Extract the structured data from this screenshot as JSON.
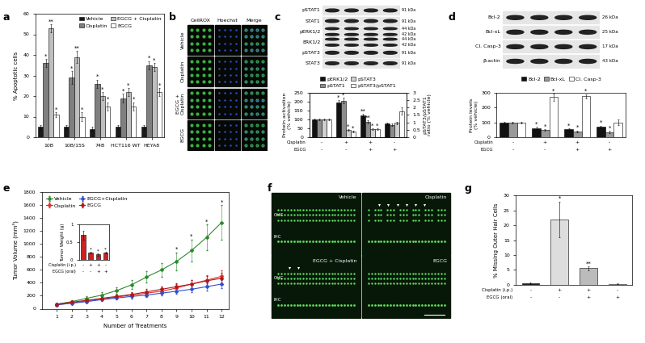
{
  "panel_labels": [
    "a",
    "b",
    "c",
    "d",
    "e",
    "f",
    "g"
  ],
  "chart_data": [
    {
      "type": "bar",
      "ylabel": "% Apoptotic cells",
      "categories": [
        "10B",
        "10B/15S",
        "74B",
        "HCT116 WT",
        "HEYA8"
      ],
      "ylim": [
        0,
        60
      ],
      "yticks": [
        0,
        10,
        20,
        30,
        40,
        50,
        60
      ],
      "legend": "upper right",
      "series": [
        {
          "name": "Vehicle",
          "color": "#1a1a1a",
          "values": [
            5,
            5,
            4,
            5,
            5
          ],
          "errors": [
            1,
            1,
            1,
            1,
            1
          ],
          "marks": [
            null,
            null,
            null,
            null,
            null
          ]
        },
        {
          "name": "Cisplatin",
          "color": "#7f7f7f",
          "values": [
            36,
            29,
            26,
            19,
            35
          ],
          "errors": [
            2,
            3,
            2,
            2,
            2
          ],
          "marks": [
            "*",
            "*",
            "*",
            "*",
            "*"
          ]
        },
        {
          "name": "EGCG + Cisplatin",
          "color": "#bfbfbf",
          "values": [
            53,
            39,
            20,
            22,
            34
          ],
          "errors": [
            2,
            3,
            2,
            2,
            2
          ],
          "marks": [
            "**",
            "**",
            "*",
            "*",
            "*"
          ]
        },
        {
          "name": "EGCG",
          "color": "#ffffff",
          "values": [
            11,
            10,
            15,
            15,
            22
          ],
          "errors": [
            1,
            2,
            2,
            2,
            2
          ],
          "marks": [
            "*",
            "*",
            "*",
            "*",
            "*"
          ]
        }
      ]
    },
    {
      "type": "bar",
      "ylabel": "Protein activation\n(% vehicle)",
      "y2label": "pSTAT3/pSTAT1\nratio (% vehicle)",
      "categories": [
        null,
        null,
        null,
        null
      ],
      "ylim": [
        0,
        250
      ],
      "yticks": [
        0,
        50,
        100,
        150,
        200,
        250
      ],
      "y2lim": [
        0,
        3
      ],
      "y2ticks": [
        0,
        0.5,
        1,
        1.5,
        2,
        2.5,
        3
      ],
      "legend": "upper center",
      "series": [
        {
          "name": "pERK1/2",
          "color": "#111111",
          "values": [
            100,
            195,
            120,
            75
          ],
          "errors": [
            5,
            12,
            10,
            8
          ],
          "marks": [
            null,
            "*",
            "**",
            null
          ]
        },
        {
          "name": "pSTAT1",
          "color": "#8c8c8c",
          "values": [
            100,
            205,
            85,
            70
          ],
          "errors": [
            5,
            15,
            8,
            8
          ],
          "marks": [
            null,
            "*",
            "**",
            null
          ]
        },
        {
          "name": "pSTAT3",
          "color": "#d0d0d0",
          "values": [
            100,
            40,
            45,
            80
          ],
          "errors": [
            5,
            6,
            6,
            8
          ],
          "marks": [
            null,
            "*",
            "*",
            null
          ]
        },
        {
          "name": "pSTAT3/pSTAT1",
          "color": "#ffffff",
          "axis": "y2",
          "values": [
            1.2,
            0.4,
            0.55,
            1.75
          ],
          "errors": [
            0.05,
            0.05,
            0.05,
            0.25
          ],
          "marks": [
            null,
            "*",
            "*",
            null
          ]
        }
      ],
      "treatments": [
        {
          "name": "Cisplatin",
          "signs": [
            "-",
            "+",
            "+",
            "-"
          ]
        },
        {
          "name": "EGCG",
          "signs": [
            "-",
            "-",
            "+",
            "+"
          ]
        }
      ]
    },
    {
      "type": "bar",
      "ylabel": "Protein levels\n(% vehicle)",
      "categories": [
        null,
        null,
        null,
        null
      ],
      "ylim": [
        0,
        300
      ],
      "yticks": [
        0,
        100,
        200,
        300
      ],
      "legend": "upper center",
      "series": [
        {
          "name": "Bcl-2",
          "color": "#111111",
          "values": [
            100,
            60,
            55,
            70
          ],
          "errors": [
            5,
            8,
            6,
            8
          ],
          "marks": [
            null,
            "*",
            "*",
            "*"
          ]
        },
        {
          "name": "Bcl-xL",
          "color": "#999999",
          "values": [
            100,
            50,
            40,
            35
          ],
          "errors": [
            5,
            6,
            6,
            6
          ],
          "marks": [
            null,
            "*",
            "*",
            "*"
          ]
        },
        {
          "name": "Cl. Casp-3",
          "color": "#ffffff",
          "values": [
            100,
            270,
            275,
            100
          ],
          "errors": [
            5,
            25,
            15,
            20
          ],
          "marks": [
            null,
            "*",
            "*",
            null
          ]
        }
      ],
      "treatments": [
        {
          "name": "Cisplatin",
          "signs": [
            "-",
            "+",
            "+",
            "-"
          ]
        },
        {
          "name": "EGCG",
          "signs": [
            "-",
            "-",
            "+",
            "+"
          ]
        }
      ]
    },
    {
      "type": "line",
      "xlabel": "Number of Treatments",
      "ylabel": "Tumor Volume (mm³)",
      "x": [
        1,
        2,
        3,
        4,
        5,
        6,
        7,
        8,
        9,
        10,
        11,
        12
      ],
      "xlim": [
        0,
        12.5
      ],
      "xticks": [
        1,
        2,
        3,
        4,
        5,
        6,
        7,
        8,
        9,
        10,
        11,
        12
      ],
      "ylim": [
        0,
        1800
      ],
      "yticks": [
        0,
        200,
        400,
        600,
        800,
        1000,
        1200,
        1400,
        1600,
        1800
      ],
      "legend": "upper left",
      "marker": "diamond",
      "series": [
        {
          "name": "Vehicle",
          "color": "#2e8b2e",
          "values": [
            70,
            110,
            160,
            210,
            280,
            370,
            490,
            600,
            730,
            900,
            1100,
            1330
          ],
          "errors": [
            15,
            20,
            30,
            40,
            50,
            70,
            90,
            110,
            140,
            170,
            200,
            270
          ],
          "marks": [
            null,
            null,
            null,
            null,
            null,
            null,
            null,
            null,
            "*",
            "*",
            "*",
            "*"
          ]
        },
        {
          "name": "Cisplatin",
          "color": "#e03030",
          "values": [
            60,
            90,
            120,
            150,
            180,
            210,
            240,
            270,
            320,
            380,
            440,
            500
          ],
          "errors": [
            10,
            15,
            20,
            25,
            30,
            35,
            40,
            45,
            55,
            65,
            75,
            90
          ]
        },
        {
          "name": "EGCG+Cisplatin",
          "color": "#3050d0",
          "values": [
            60,
            85,
            110,
            140,
            165,
            190,
            210,
            240,
            270,
            300,
            340,
            380
          ],
          "errors": [
            10,
            12,
            15,
            20,
            25,
            30,
            35,
            40,
            45,
            50,
            55,
            60
          ]
        },
        {
          "name": "EGCG",
          "color": "#b01818",
          "values": [
            70,
            100,
            130,
            160,
            190,
            220,
            260,
            300,
            340,
            380,
            430,
            470
          ],
          "errors": [
            10,
            15,
            20,
            25,
            30,
            35,
            40,
            45,
            55,
            65,
            75,
            85
          ]
        }
      ],
      "inset": {
        "type": "bar",
        "ylabel": "Tumor Weight (g)",
        "categories": [
          null,
          null,
          null,
          null
        ],
        "values": [
          0.7,
          0.2,
          0.15,
          0.2
        ],
        "errors": [
          0.12,
          0.03,
          0.03,
          0.03
        ],
        "marks": [
          null,
          "*",
          "*",
          "*"
        ],
        "color": "#cc2222",
        "ylim": [
          0,
          1
        ],
        "yticks": [
          0,
          0.5,
          1
        ],
        "treatments": [
          {
            "name": "Cisplatin (i.p.)",
            "signs": [
              "-",
              "+",
              "+",
              "-"
            ]
          },
          {
            "name": "EGCG (oral)",
            "signs": [
              "-",
              "-",
              "+",
              "+"
            ]
          }
        ]
      }
    },
    {
      "type": "bar",
      "ylabel": "% Missing Outer Hair Cells",
      "categories": [
        null,
        null,
        null,
        null
      ],
      "values": [
        0.5,
        22,
        5.5,
        0.3
      ],
      "errors": [
        0.3,
        6,
        0.7,
        0.2
      ],
      "marks": [
        null,
        "*",
        "**",
        null
      ],
      "colors": [
        "#222222",
        "#dddddd",
        "#bbbbbb",
        "#ffffff"
      ],
      "ylim": [
        0,
        30
      ],
      "yticks": [
        0,
        5,
        10,
        15,
        20,
        25,
        30
      ],
      "treatments": [
        {
          "name": "Cisplatin (i.p.)",
          "signs": [
            "-",
            "+",
            "+",
            "-"
          ]
        },
        {
          "name": "EGCG (oral)",
          "signs": [
            "-",
            "-",
            "+",
            "+"
          ]
        }
      ]
    }
  ],
  "cellrox_images": {
    "columns": [
      "CellROX",
      "Hoechst",
      "Merge"
    ],
    "rows": [
      "Vehicle",
      "Cisplatin",
      "EGCG +\nCisplatin",
      "EGCG"
    ]
  },
  "blots_c": [
    {
      "label": "pSTAT1",
      "kda": [
        "91 kDa"
      ]
    },
    {
      "label": "STAT1",
      "kda": [
        "91 kDa"
      ]
    },
    {
      "label": "pERK1/2",
      "kda": [
        "44 kDa",
        "42 kDa"
      ]
    },
    {
      "label": "ERK1/2",
      "kda": [
        "44 kDa",
        "42 kDa"
      ]
    },
    {
      "label": "pSTAT3",
      "kda": [
        "91 kDa"
      ]
    },
    {
      "label": "STAT3",
      "kda": [
        "91 kDa"
      ]
    }
  ],
  "blots_d": [
    {
      "label": "Bcl-2",
      "kda": [
        "26 kDa"
      ]
    },
    {
      "label": "Bcl-xL",
      "kda": [
        "25 kDa"
      ]
    },
    {
      "label": "Cl. Casp-3",
      "kda": [
        "17 kDa"
      ]
    },
    {
      "label": "β-actin",
      "kda": [
        "43 kDa"
      ]
    }
  ],
  "cochlea_images": {
    "panels": [
      "Vehicle",
      "Cisplatin",
      "EGCG + Cisplatin",
      "EGCG"
    ],
    "row_labels": [
      "OHC",
      "IHC"
    ]
  }
}
